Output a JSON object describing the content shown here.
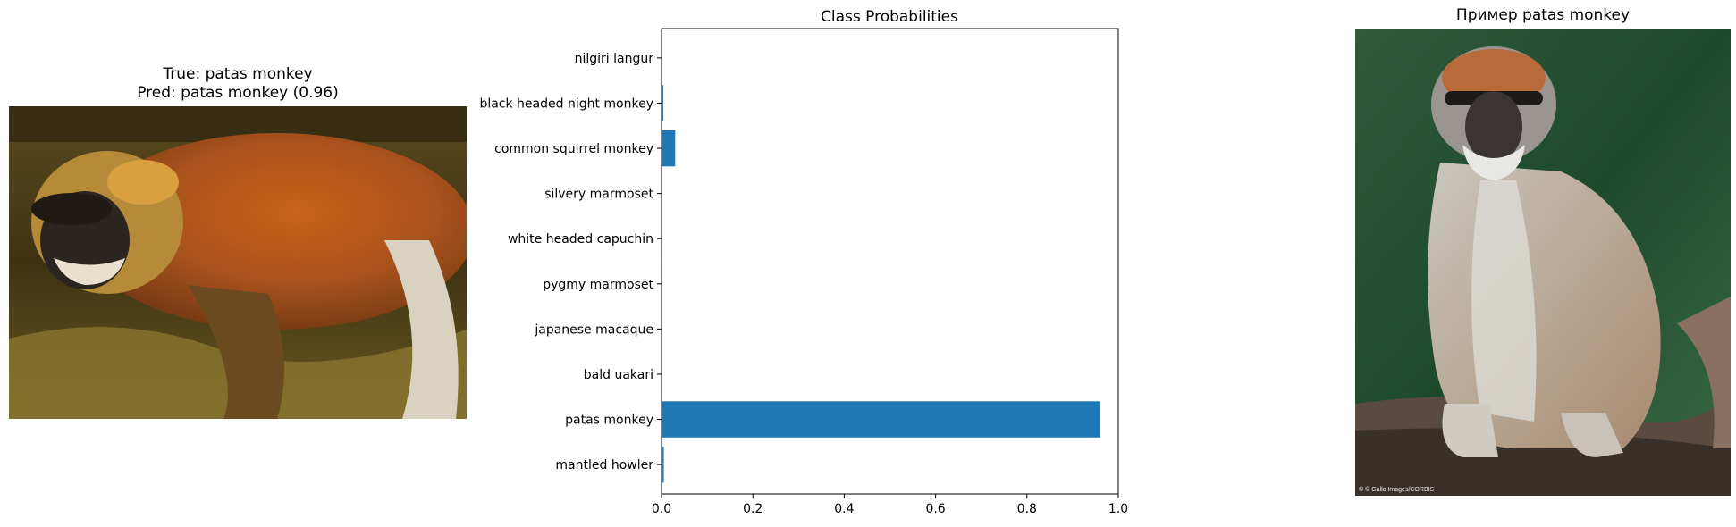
{
  "left_panel": {
    "title_true": "True: patas monkey",
    "title_pred": "Pred: patas monkey (0.96)"
  },
  "right_panel": {
    "title": "Пример patas monkey",
    "photo_credit": "© © Gallo Images/CORBIS"
  },
  "chart_data": {
    "type": "bar",
    "orientation": "horizontal",
    "title": "Class Probabilities",
    "xlabel": "",
    "ylabel": "",
    "xlim": [
      0,
      1.0
    ],
    "xticks": [
      "0.0",
      "0.2",
      "0.4",
      "0.6",
      "0.8",
      "1.0"
    ],
    "categories": [
      "mantled howler",
      "patas monkey",
      "bald uakari",
      "japanese macaque",
      "pygmy marmoset",
      "white headed capuchin",
      "silvery marmoset",
      "common squirrel monkey",
      "black headed night monkey",
      "nilgiri langur"
    ],
    "values": [
      0.005,
      0.96,
      0.001,
      0.001,
      0.001,
      0.001,
      0.001,
      0.03,
      0.004,
      0.001
    ],
    "bar_color": "#1f77b4",
    "grid": false
  }
}
